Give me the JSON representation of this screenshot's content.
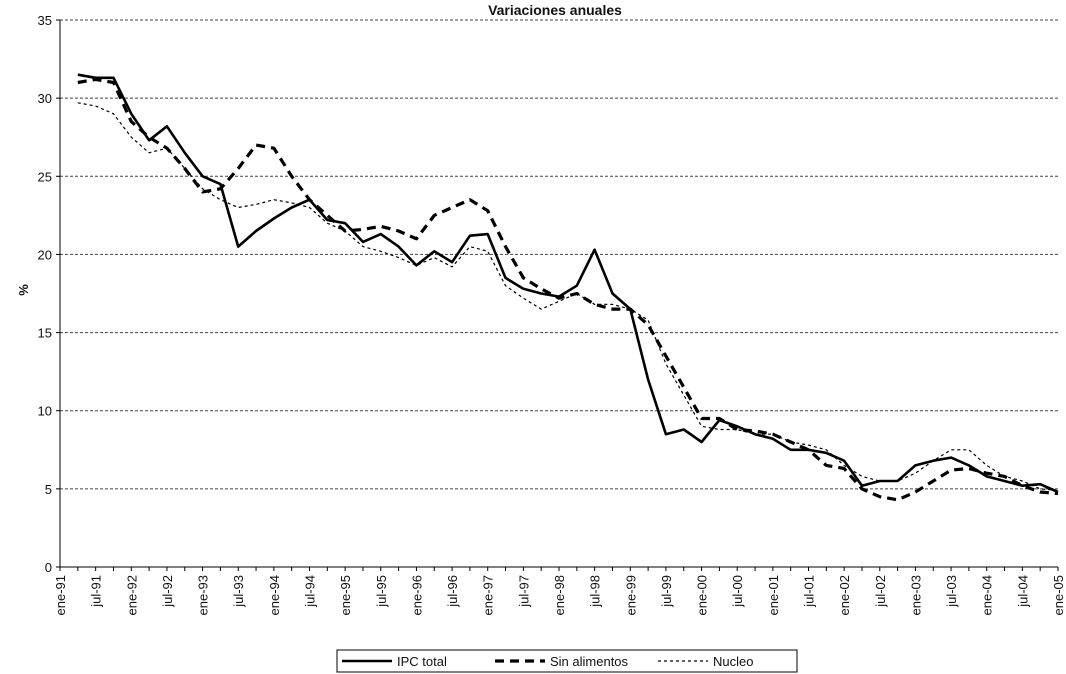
{
  "chart_data": {
    "type": "line",
    "title": "Variaciones anuales",
    "y_label": "%",
    "categories": [
      "ene-91",
      null,
      "jul-91",
      null,
      "ene-92",
      null,
      "jul-92",
      null,
      "ene-93",
      null,
      "jul-93",
      null,
      "ene-94",
      null,
      "jul-94",
      null,
      "ene-95",
      null,
      "jul-95",
      null,
      "ene-96",
      null,
      "jul-96",
      null,
      "ene-97",
      null,
      "jul-97",
      null,
      "ene-98",
      null,
      "jul-98",
      null,
      "ene-99",
      null,
      "jul-99",
      null,
      "ene-00",
      null,
      "jul-00",
      null,
      "ene-01",
      null,
      "jul-01",
      null,
      "ene-02",
      null,
      "jul-02",
      null,
      "ene-03",
      null,
      "jul-03",
      null,
      "ene-04",
      null,
      "jul-04",
      null,
      "ene-05"
    ],
    "series": [
      {
        "name": "IPC total",
        "color": "#000000",
        "values": [
          null,
          31.5,
          31.3,
          31.3,
          29,
          27.3,
          28.2,
          26.5,
          25,
          24.5,
          20.5,
          21.5,
          22.3,
          23,
          23.5,
          22.2,
          22,
          20.8,
          21.3,
          20.5,
          19.3,
          20.2,
          19.5,
          21.2,
          21.3,
          18.5,
          17.8,
          17.5,
          17.3,
          18,
          20.3,
          17.5,
          16.5,
          12,
          8.5,
          8.8,
          8,
          9.4,
          9,
          8.5,
          8.2,
          7.5,
          7.5,
          7.3,
          6.8,
          5.2,
          5.5,
          5.5,
          6.5,
          6.8,
          7,
          6.5,
          5.8,
          5.5,
          5.2,
          5.3,
          4.8
        ]
      },
      {
        "name": "Sin alimentos",
        "color": "#000000",
        "values": [
          null,
          31,
          31.2,
          31,
          28.5,
          27.5,
          26.8,
          25.5,
          24,
          24.2,
          25.5,
          27,
          26.8,
          25,
          23.5,
          22.5,
          21.5,
          21.6,
          21.8,
          21.5,
          21,
          22.5,
          23,
          23.5,
          22.8,
          20.5,
          18.5,
          17.8,
          17.2,
          17.5,
          16.8,
          16.5,
          16.5,
          15.5,
          13.5,
          11.5,
          9.5,
          9.5,
          8.8,
          8.7,
          8.5,
          8,
          7.5,
          6.5,
          6.3,
          5,
          4.5,
          4.3,
          4.8,
          5.5,
          6.2,
          6.3,
          6,
          5.8,
          5.2,
          4.8,
          4.7
        ]
      },
      {
        "name": "Nucleo",
        "color": "#000000",
        "values": [
          null,
          29.7,
          29.5,
          29,
          27.5,
          26.5,
          26.8,
          25.5,
          24.2,
          23.5,
          23,
          23.2,
          23.5,
          23.3,
          23,
          22,
          21.5,
          20.5,
          20.2,
          19.8,
          19.3,
          19.8,
          19.2,
          20.5,
          20.2,
          18,
          17.2,
          16.5,
          17,
          17.5,
          16.8,
          16.8,
          16.5,
          15.8,
          13,
          11,
          9,
          8.8,
          8.8,
          8.5,
          8.5,
          8,
          7.8,
          7.5,
          6.5,
          5.8,
          5.5,
          5.5,
          6,
          6.8,
          7.5,
          7.5,
          6.5,
          5.8,
          5.5,
          5,
          4.9
        ]
      }
    ],
    "ylim": [
      0,
      35
    ],
    "yticks": [
      0,
      5,
      10,
      15,
      20,
      25,
      30,
      35
    ],
    "grid": true,
    "legend": "bottom"
  }
}
